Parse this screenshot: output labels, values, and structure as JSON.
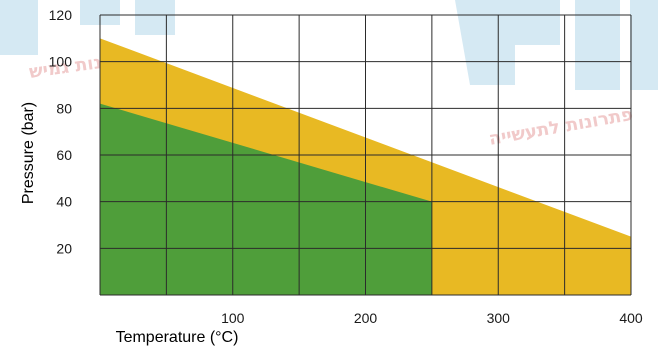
{
  "chart_data": {
    "type": "area",
    "xlabel": "Temperature (°C)",
    "ylabel": "Pressure (bar)",
    "xlim": [
      0,
      400
    ],
    "ylim": [
      0,
      120
    ],
    "x_ticks": [
      100,
      200,
      300,
      400
    ],
    "y_ticks": [
      20,
      40,
      60,
      80,
      100,
      120
    ],
    "grid": true,
    "series": [
      {
        "color": "#e8b923",
        "points": [
          [
            0,
            110
          ],
          [
            400,
            25
          ],
          [
            400,
            0
          ],
          [
            0,
            0
          ]
        ]
      },
      {
        "color": "#4f9e3a",
        "points": [
          [
            0,
            82
          ],
          [
            250,
            40
          ],
          [
            250,
            0
          ],
          [
            0,
            0
          ]
        ]
      }
    ]
  },
  "watermark": {
    "text_left": "פתרונות גמיש",
    "text_right": "פתרונות לתעשייה",
    "logo_letters": "GUM",
    "color": "#c7e2ef"
  }
}
